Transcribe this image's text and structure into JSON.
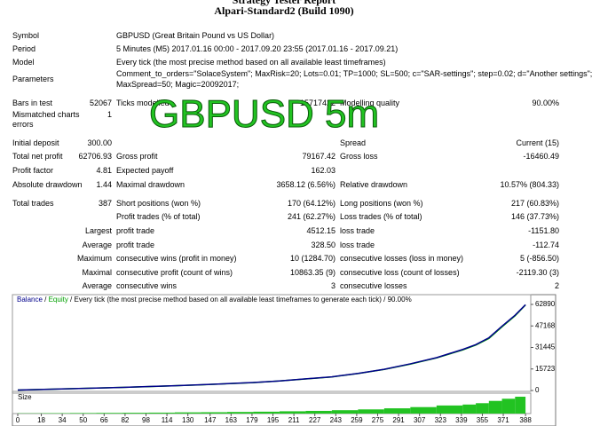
{
  "header": {
    "title": "Strategy Tester Report",
    "subtitle": "Alpari-Standard2 (Build 1090)"
  },
  "overlay": "GBPUSD 5m",
  "info": [
    [
      "Symbol",
      "GBPUSD (Great Britain Pound vs US Dollar)"
    ],
    [
      "Period",
      "5 Minutes (M5) 2017.01.16 00:00 - 2017.09.20 23:55 (2017.01.16 - 2017.09.21)"
    ],
    [
      "Model",
      "Every tick (the most precise method based on all available least timeframes)"
    ],
    [
      "Parameters",
      "Comment_to_orders=\"SolaceSystem\"; MaxRisk=20; Lots=0.01; TP=1000; SL=500; c=\"SAR-settings\"; step=0.02; d=\"Another settings\";",
      "MaxSpread=50; Magic=20092017;"
    ]
  ],
  "stats": [
    [
      "Bars in test",
      "52067",
      "Ticks modelled",
      "15717422",
      "Modelling quality",
      "90.00%"
    ],
    [
      "Mismatched charts errors",
      "1"
    ],
    [
      "Initial deposit",
      "300.00",
      "Spread",
      "Current (15)"
    ],
    [
      "Total net profit",
      "62706.93",
      "Gross profit",
      "79167.42",
      "Gross loss",
      "-16460.49"
    ],
    [
      "Profit factor",
      "4.81",
      "Expected payoff",
      "162.03"
    ],
    [
      "Absolute drawdown",
      "1.44",
      "Maximal drawdown",
      "3658.12 (6.56%)",
      "Relative drawdown",
      "10.57% (804.33)"
    ],
    [
      "Total trades",
      "387",
      "Short positions (won %)",
      "170 (64.12%)",
      "Long positions (won %)",
      "217 (60.83%)"
    ],
    [
      "Profit trades (% of total)",
      "241 (62.27%)",
      "Loss trades (% of total)",
      "146 (37.73%)"
    ],
    [
      "Largest",
      "profit trade",
      "4512.15",
      "loss trade",
      "-1151.80"
    ],
    [
      "Average",
      "profit trade",
      "328.50",
      "loss trade",
      "-112.74"
    ],
    [
      "Maximum",
      "consecutive wins (profit in money)",
      "10 (1284.70)",
      "consecutive losses (loss in money)",
      "5 (-856.50)"
    ],
    [
      "Maximal",
      "consecutive profit (count of wins)",
      "10863.35 (9)",
      "consecutive loss (count of losses)",
      "-2119.30 (3)"
    ],
    [
      "Average",
      "consecutive wins",
      "3",
      "consecutive losses",
      "2"
    ]
  ],
  "chart_data": {
    "type": "line",
    "subtitle": "Every tick (the most precise method based on all available least timeframes to generate each tick)",
    "quality": "90.00%",
    "x": [
      0,
      20,
      40,
      60,
      80,
      100,
      120,
      140,
      160,
      180,
      200,
      220,
      240,
      260,
      280,
      300,
      320,
      340,
      350,
      360,
      370,
      380,
      388
    ],
    "series": [
      {
        "name": "Balance",
        "color": "#00008b",
        "values": [
          300,
          800,
          1300,
          1800,
          2300,
          2900,
          3500,
          4200,
          5000,
          5800,
          7000,
          8500,
          10000,
          12500,
          15500,
          19500,
          24000,
          30000,
          33500,
          38500,
          47000,
          55000,
          62700
        ]
      },
      {
        "name": "Equity",
        "color": "#00a000",
        "values": [
          300,
          780,
          1280,
          1780,
          2280,
          2870,
          3480,
          4150,
          4980,
          5750,
          6950,
          8450,
          9900,
          12400,
          15400,
          19300,
          23800,
          29600,
          33200,
          38000,
          46500,
          54600,
          62500
        ]
      }
    ],
    "size": {
      "name": "Size",
      "color": "#22c322",
      "values": [
        0.01,
        0.02,
        0.03,
        0.04,
        0.05,
        0.06,
        0.07,
        0.09,
        0.1,
        0.12,
        0.14,
        0.17,
        0.2,
        0.25,
        0.31,
        0.39,
        0.48,
        0.6,
        0.67,
        0.77,
        0.94,
        1.1,
        1.25
      ]
    },
    "xlim": [
      0,
      392
    ],
    "ylim": [
      0,
      62890
    ],
    "xticks": [
      0,
      18,
      34,
      50,
      66,
      82,
      98,
      114,
      130,
      147,
      163,
      179,
      195,
      211,
      227,
      243,
      259,
      275,
      291,
      307,
      323,
      339,
      355,
      371,
      388
    ],
    "yticks": [
      0,
      15723,
      31445,
      47168,
      62890
    ]
  }
}
